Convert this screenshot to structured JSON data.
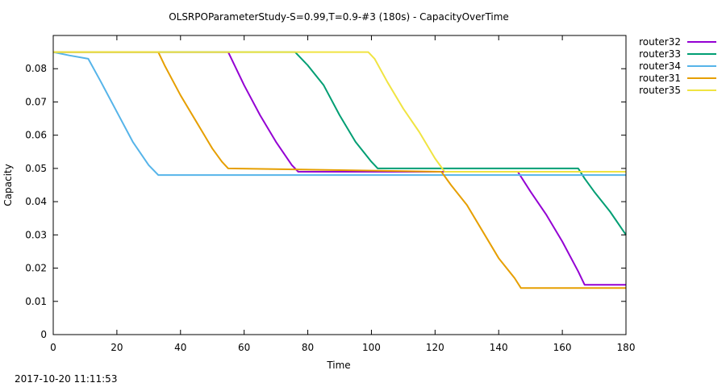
{
  "chart_data": {
    "type": "line",
    "title": "OLSRPOParameterStudy-S=0.99,T=0.9-#3 (180s) - CapacityOverTime",
    "xlabel": "Time",
    "ylabel": "Capacity",
    "xlim": [
      0,
      180
    ],
    "ylim": [
      0,
      0.09
    ],
    "xticks": [
      "0",
      "20",
      "40",
      "60",
      "80",
      "100",
      "120",
      "140",
      "160",
      "180"
    ],
    "yticks": [
      "0",
      "0.01",
      "0.02",
      "0.03",
      "0.04",
      "0.05",
      "0.06",
      "0.07",
      "0.08"
    ],
    "grid": false,
    "legend_position": "outside-top-right",
    "series": [
      {
        "name": "router32",
        "color": "#9400d3",
        "x": [
          0,
          55,
          60,
          65,
          70,
          75,
          77,
          80,
          105,
          146,
          150,
          155,
          160,
          165,
          167,
          180
        ],
        "y": [
          0.085,
          0.085,
          0.075,
          0.066,
          0.058,
          0.051,
          0.049,
          0.049,
          0.049,
          0.049,
          0.043,
          0.036,
          0.028,
          0.019,
          0.015,
          0.015
        ]
      },
      {
        "name": "router33",
        "color": "#009e73",
        "x": [
          0,
          76,
          80,
          85,
          90,
          95,
          100,
          102,
          165,
          167,
          170,
          175,
          180
        ],
        "y": [
          0.085,
          0.085,
          0.081,
          0.075,
          0.066,
          0.058,
          0.052,
          0.05,
          0.05,
          0.047,
          0.043,
          0.037,
          0.03
        ]
      },
      {
        "name": "router34",
        "color": "#56b4e9",
        "x": [
          0,
          5,
          11,
          15,
          20,
          25,
          30,
          33,
          180
        ],
        "y": [
          0.085,
          0.084,
          0.083,
          0.076,
          0.067,
          0.058,
          0.051,
          0.048,
          0.048
        ]
      },
      {
        "name": "router31",
        "color": "#e69f00",
        "x": [
          0,
          33,
          35,
          40,
          45,
          50,
          53,
          55,
          122,
          125,
          130,
          135,
          140,
          145,
          147,
          180
        ],
        "y": [
          0.085,
          0.085,
          0.081,
          0.072,
          0.064,
          0.056,
          0.052,
          0.05,
          0.049,
          0.045,
          0.039,
          0.031,
          0.023,
          0.017,
          0.014,
          0.014
        ]
      },
      {
        "name": "router35",
        "color": "#f0e442",
        "x": [
          0,
          99,
          101,
          105,
          110,
          115,
          120,
          123,
          180
        ],
        "y": [
          0.085,
          0.085,
          0.083,
          0.076,
          0.068,
          0.061,
          0.053,
          0.049,
          0.049
        ]
      }
    ]
  },
  "footer": {
    "timestamp": "2017-10-20 11:11:53"
  }
}
